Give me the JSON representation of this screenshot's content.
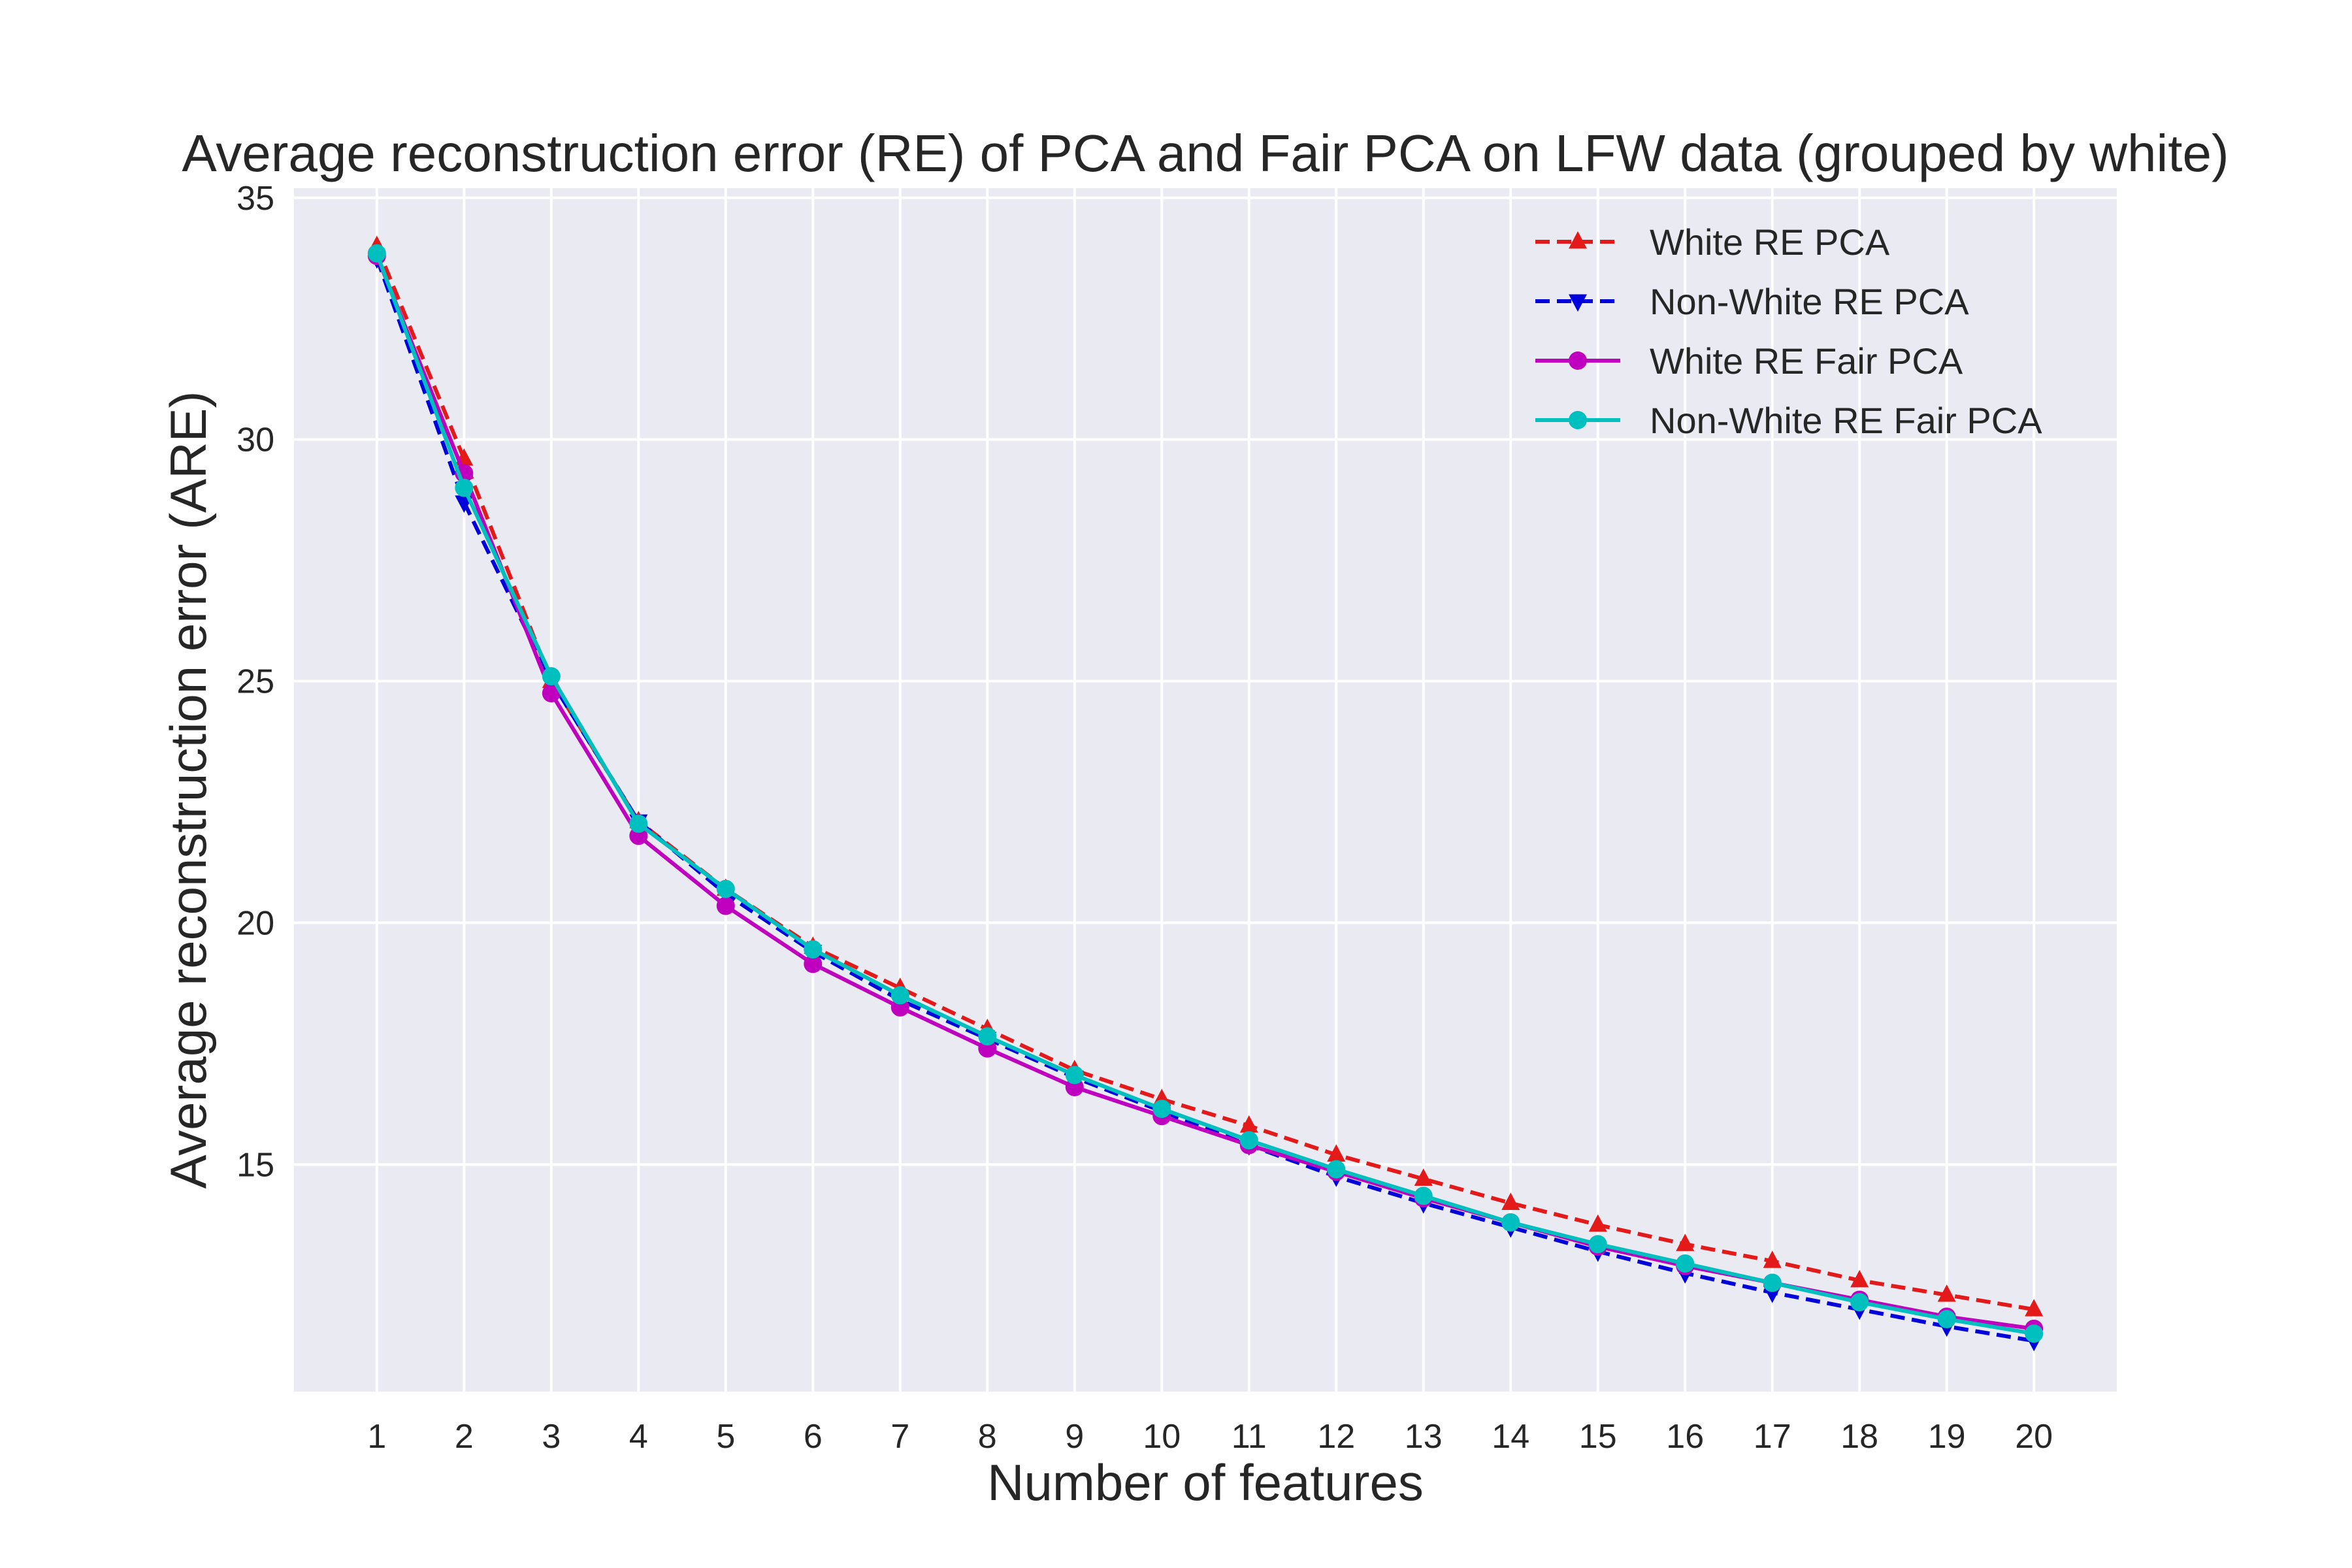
{
  "chart_data": {
    "type": "line",
    "title": "Average reconstruction error (RE) of PCA and Fair PCA on LFW data (grouped by white)",
    "xlabel": "Number of features",
    "ylabel": "Average reconstruction error (ARE)",
    "x": [
      1,
      2,
      3,
      4,
      5,
      6,
      7,
      8,
      9,
      10,
      11,
      12,
      13,
      14,
      15,
      16,
      17,
      18,
      19,
      20
    ],
    "xlim": [
      0.05,
      20.95
    ],
    "ylim": [
      10.3,
      35.2
    ],
    "y_ticks": [
      15,
      20,
      25,
      30,
      35
    ],
    "grid": true,
    "legend_position": "top-right",
    "series": [
      {
        "name": "White RE PCA",
        "color": "#e41a1a",
        "line_style": "dashed",
        "marker": "triangle-up",
        "values": [
          34.0,
          29.6,
          25.0,
          22.1,
          20.7,
          19.5,
          18.65,
          17.8,
          16.95,
          16.35,
          15.8,
          15.2,
          14.7,
          14.2,
          13.75,
          13.35,
          13.0,
          12.6,
          12.3,
          12.0
        ]
      },
      {
        "name": "Non-White RE PCA",
        "color": "#0000dd",
        "line_style": "dashed",
        "marker": "triangle-down",
        "values": [
          33.75,
          28.7,
          25.0,
          22.1,
          20.6,
          19.4,
          18.4,
          17.6,
          16.8,
          16.1,
          15.4,
          14.75,
          14.2,
          13.7,
          13.2,
          12.75,
          12.35,
          12.0,
          11.65,
          11.35
        ]
      },
      {
        "name": "White RE Fair PCA",
        "color": "#bf00bf",
        "line_style": "solid",
        "marker": "circle",
        "values": [
          33.8,
          29.3,
          24.75,
          21.8,
          20.35,
          19.15,
          18.25,
          17.4,
          16.6,
          16.0,
          15.4,
          14.85,
          14.3,
          13.8,
          13.3,
          12.9,
          12.55,
          12.2,
          11.85,
          11.6
        ]
      },
      {
        "name": "Non-White RE Fair PCA",
        "color": "#00bfbf",
        "line_style": "solid",
        "marker": "circle",
        "values": [
          33.85,
          29.0,
          25.1,
          22.05,
          20.7,
          19.45,
          18.5,
          17.65,
          16.85,
          16.15,
          15.5,
          14.9,
          14.35,
          13.8,
          13.35,
          12.95,
          12.55,
          12.15,
          11.8,
          11.5
        ]
      }
    ]
  }
}
